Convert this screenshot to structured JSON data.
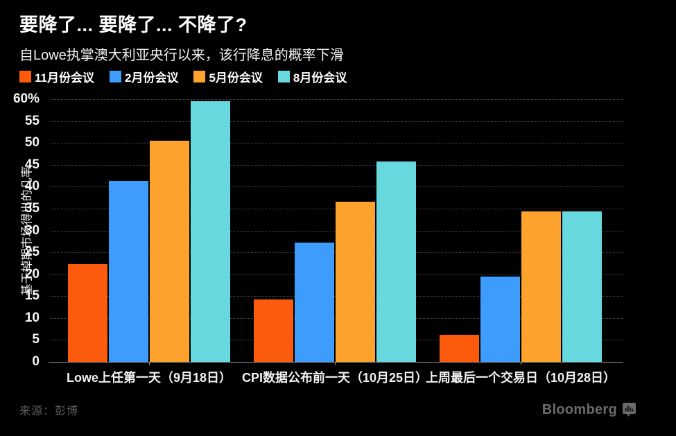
{
  "title": "要降了... 要降了... 不降了?",
  "subtitle": "自Lowe执掌澳大利亚央行以来，该行降息的概率下滑",
  "legend": [
    {
      "label": "11月份会议",
      "color": "#FC5A0C",
      "icon": "legend-swatch-square"
    },
    {
      "label": "2月份会议",
      "color": "#3E9DFC",
      "icon": "legend-swatch-square"
    },
    {
      "label": "5月份会议",
      "color": "#FCA22D",
      "icon": "legend-swatch-square"
    },
    {
      "label": "8月份会议",
      "color": "#68D8DF",
      "icon": "legend-swatch-square"
    }
  ],
  "chart_data": {
    "type": "bar",
    "title": "要降了... 要降了... 不降了?",
    "subtitle": "自Lowe执掌澳大利亚央行以来，该行降息的概率下滑",
    "xlabel": "",
    "ylabel": "基于掉期市场得出的几率",
    "ylim": [
      0,
      60
    ],
    "ytick_interval": 5,
    "ytick_top_label": "60%",
    "grid": "horizontal-dotted",
    "legend_position": "top-left",
    "categories": [
      "Lowe上任第一天（9月18日）",
      "CPI数据公布前一天（10月25日）",
      "上周最后一个交易日（10月28日）"
    ],
    "series": [
      {
        "name": "11月份会议",
        "color": "#FC5A0C",
        "values": [
          22.3,
          14.3,
          6.2
        ]
      },
      {
        "name": "2月份会议",
        "color": "#3E9DFC",
        "values": [
          41.4,
          27.3,
          19.5
        ]
      },
      {
        "name": "5月份会议",
        "color": "#FCA22D",
        "values": [
          50.5,
          36.6,
          34.3
        ]
      },
      {
        "name": "8月份会议",
        "color": "#68D8DF",
        "values": [
          59.5,
          45.8,
          34.3
        ]
      }
    ]
  },
  "footer": {
    "source": "来源：彭博",
    "brand": "Bloomberg"
  },
  "colors": {
    "background": "#000000",
    "axis": "#9b9b9b",
    "gridline": "#4a4a4a",
    "tick_text": "#f5f5f5",
    "muted_text": "#5d5d5d",
    "brand_text": "#6b6b6b"
  }
}
